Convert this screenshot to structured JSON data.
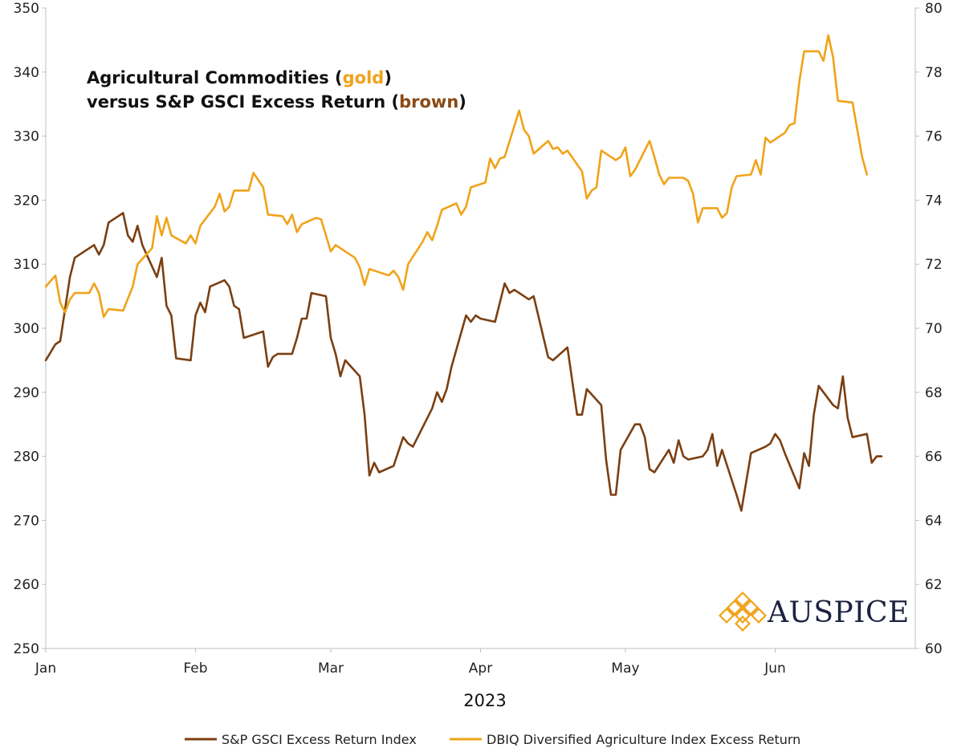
{
  "chart_data": {
    "type": "line",
    "title_line1": [
      "Agricultural Commodities (",
      "gold",
      ")"
    ],
    "title_line2": [
      "versus S&P GSCI Excess Return (",
      "brown",
      ")"
    ],
    "xlabel": "2023",
    "x_ticks": [
      "Jan",
      "Feb",
      "Mar",
      "Apr",
      "May",
      "Jun"
    ],
    "x_range_days": [
      0,
      180
    ],
    "y_left": {
      "lim": [
        250,
        350
      ],
      "ticks": [
        "250",
        "260",
        "270",
        "280",
        "290",
        "300",
        "310",
        "320",
        "330",
        "340",
        "350"
      ]
    },
    "y_right": {
      "lim": [
        60,
        80
      ],
      "ticks": [
        "60",
        "62",
        "64",
        "66",
        "68",
        "70",
        "72",
        "74",
        "76",
        "78",
        "80"
      ]
    },
    "grid": false,
    "legend_position": "bottom",
    "series": [
      {
        "name": "S&P GSCI Excess Return Index",
        "axis": "left",
        "color": "#7b3f12",
        "points": [
          [
            0,
            295
          ],
          [
            2,
            297.5
          ],
          [
            3,
            298
          ],
          [
            5,
            308
          ],
          [
            6,
            311
          ],
          [
            10,
            313
          ],
          [
            11,
            311.5
          ],
          [
            12,
            313
          ],
          [
            13,
            316.5
          ],
          [
            16,
            318
          ],
          [
            17,
            314.5
          ],
          [
            18,
            313.5
          ],
          [
            19,
            316
          ],
          [
            20,
            313
          ],
          [
            23,
            308
          ],
          [
            24,
            311
          ],
          [
            25,
            303.5
          ],
          [
            26,
            302
          ],
          [
            27,
            295.3
          ],
          [
            30,
            295
          ],
          [
            31,
            302
          ],
          [
            32,
            304
          ],
          [
            33,
            302.5
          ],
          [
            34,
            306.5
          ],
          [
            37,
            307.5
          ],
          [
            38,
            306.5
          ],
          [
            39,
            303.5
          ],
          [
            40,
            303
          ],
          [
            41,
            298.5
          ],
          [
            45,
            299.5
          ],
          [
            46,
            294
          ],
          [
            47,
            295.5
          ],
          [
            48,
            296
          ],
          [
            51,
            296
          ],
          [
            52,
            298.5
          ],
          [
            53,
            301.5
          ],
          [
            54,
            301.5
          ],
          [
            55,
            305.5
          ],
          [
            58,
            305
          ],
          [
            59,
            298.5
          ],
          [
            60,
            296
          ],
          [
            61,
            292.5
          ],
          [
            62,
            295
          ],
          [
            65,
            292.5
          ],
          [
            66,
            286.5
          ],
          [
            67,
            277
          ],
          [
            68,
            279
          ],
          [
            69,
            277.5
          ],
          [
            72,
            278.5
          ],
          [
            74,
            283
          ],
          [
            75,
            282
          ],
          [
            76,
            281.5
          ],
          [
            80,
            287.5
          ],
          [
            81,
            290
          ],
          [
            82,
            288.5
          ],
          [
            83,
            290.5
          ],
          [
            84,
            294
          ],
          [
            87,
            302
          ],
          [
            88,
            301
          ],
          [
            89,
            302
          ],
          [
            90,
            301.5
          ],
          [
            93,
            301
          ],
          [
            95,
            307
          ],
          [
            96,
            305.5
          ],
          [
            97,
            306
          ],
          [
            99,
            305
          ],
          [
            100,
            304.5
          ],
          [
            101,
            305
          ],
          [
            104,
            295.5
          ],
          [
            105,
            295
          ],
          [
            108,
            297
          ],
          [
            110,
            286.5
          ],
          [
            111,
            286.5
          ],
          [
            112,
            290.5
          ],
          [
            115,
            288
          ],
          [
            116,
            279.5
          ],
          [
            117,
            274
          ],
          [
            118,
            274
          ],
          [
            119,
            281
          ],
          [
            122,
            285
          ],
          [
            123,
            285
          ],
          [
            124,
            283
          ],
          [
            125,
            278
          ],
          [
            126,
            277.5
          ],
          [
            129,
            281
          ],
          [
            130,
            279
          ],
          [
            131,
            282.5
          ],
          [
            132,
            280
          ],
          [
            133,
            279.5
          ],
          [
            136,
            280
          ],
          [
            137,
            281
          ],
          [
            138,
            283.5
          ],
          [
            139,
            278.5
          ],
          [
            140,
            281
          ],
          [
            143,
            274
          ],
          [
            144,
            271.5
          ],
          [
            146,
            280.5
          ],
          [
            149,
            281.5
          ],
          [
            150,
            282
          ],
          [
            151,
            283.5
          ],
          [
            152,
            282.5
          ],
          [
            153,
            280.5
          ],
          [
            156,
            275
          ],
          [
            157,
            280.5
          ],
          [
            158,
            278.5
          ],
          [
            159,
            286.5
          ],
          [
            160,
            291
          ],
          [
            163,
            288
          ],
          [
            164,
            287.5
          ],
          [
            165,
            292.5
          ],
          [
            166,
            286
          ],
          [
            167,
            283
          ],
          [
            170,
            283.5
          ],
          [
            171,
            279
          ],
          [
            172,
            280
          ],
          [
            173,
            280
          ]
        ]
      },
      {
        "name": "DBIQ Diversified Agriculture Index Excess Return",
        "axis": "right",
        "color": "#f0a31a",
        "points": [
          [
            0,
            71.3
          ],
          [
            2,
            71.65
          ],
          [
            3,
            70.8
          ],
          [
            4,
            70.5
          ],
          [
            5,
            70.9
          ],
          [
            6,
            71.1
          ],
          [
            9,
            71.1
          ],
          [
            10,
            71.4
          ],
          [
            11,
            71.1
          ],
          [
            12,
            70.35
          ],
          [
            13,
            70.6
          ],
          [
            16,
            70.55
          ],
          [
            18,
            71.3
          ],
          [
            19,
            72
          ],
          [
            22,
            72.5
          ],
          [
            23,
            73.5
          ],
          [
            24,
            72.9
          ],
          [
            25,
            73.45
          ],
          [
            26,
            72.9
          ],
          [
            29,
            72.65
          ],
          [
            30,
            72.9
          ],
          [
            31,
            72.65
          ],
          [
            32,
            73.2
          ],
          [
            35,
            73.8
          ],
          [
            36,
            74.2
          ],
          [
            37,
            73.65
          ],
          [
            38,
            73.8
          ],
          [
            39,
            74.3
          ],
          [
            42,
            74.3
          ],
          [
            43,
            74.85
          ],
          [
            45,
            74.4
          ],
          [
            46,
            73.55
          ],
          [
            49,
            73.5
          ],
          [
            50,
            73.25
          ],
          [
            51,
            73.55
          ],
          [
            52,
            73.0
          ],
          [
            53,
            73.25
          ],
          [
            56,
            73.45
          ],
          [
            57,
            73.4
          ],
          [
            59,
            72.4
          ],
          [
            60,
            72.6
          ],
          [
            64,
            72.2
          ],
          [
            65,
            71.9
          ],
          [
            66,
            71.35
          ],
          [
            67,
            71.85
          ],
          [
            70,
            71.7
          ],
          [
            71,
            71.65
          ],
          [
            72,
            71.8
          ],
          [
            73,
            71.6
          ],
          [
            74,
            71.2
          ],
          [
            75,
            72.0
          ],
          [
            78,
            72.7
          ],
          [
            79,
            73.0
          ],
          [
            80,
            72.75
          ],
          [
            81,
            73.2
          ],
          [
            82,
            73.7
          ],
          [
            85,
            73.9
          ],
          [
            86,
            73.55
          ],
          [
            87,
            73.8
          ],
          [
            88,
            74.4
          ],
          [
            91,
            74.55
          ],
          [
            92,
            75.3
          ],
          [
            93,
            75.0
          ],
          [
            94,
            75.3
          ],
          [
            95,
            75.35
          ],
          [
            98,
            76.8
          ],
          [
            99,
            76.2
          ],
          [
            100,
            76.0
          ],
          [
            101,
            75.45
          ],
          [
            104,
            75.85
          ],
          [
            105,
            75.6
          ],
          [
            106,
            75.65
          ],
          [
            107,
            75.45
          ],
          [
            108,
            75.55
          ],
          [
            111,
            74.9
          ],
          [
            112,
            74.05
          ],
          [
            113,
            74.3
          ],
          [
            114,
            74.4
          ],
          [
            115,
            75.55
          ],
          [
            118,
            75.25
          ],
          [
            119,
            75.35
          ],
          [
            120,
            75.65
          ],
          [
            121,
            74.75
          ],
          [
            122,
            74.95
          ],
          [
            125,
            75.85
          ],
          [
            126,
            75.35
          ],
          [
            127,
            74.8
          ],
          [
            128,
            74.5
          ],
          [
            129,
            74.7
          ],
          [
            132,
            74.7
          ],
          [
            133,
            74.6
          ],
          [
            134,
            74.2
          ],
          [
            135,
            73.3
          ],
          [
            136,
            73.75
          ],
          [
            139,
            73.75
          ],
          [
            140,
            73.45
          ],
          [
            141,
            73.6
          ],
          [
            142,
            74.4
          ],
          [
            143,
            74.75
          ],
          [
            146,
            74.8
          ],
          [
            147,
            75.25
          ],
          [
            148,
            74.8
          ],
          [
            149,
            75.95
          ],
          [
            150,
            75.8
          ],
          [
            153,
            76.1
          ],
          [
            154,
            76.35
          ],
          [
            155,
            76.4
          ],
          [
            156,
            77.7
          ],
          [
            157,
            78.65
          ],
          [
            160,
            78.65
          ],
          [
            161,
            78.35
          ],
          [
            162,
            79.15
          ],
          [
            163,
            78.45
          ],
          [
            164,
            77.1
          ],
          [
            167,
            77.05
          ],
          [
            168,
            76.2
          ],
          [
            169,
            75.35
          ],
          [
            170,
            74.8
          ]
        ]
      }
    ]
  },
  "logo": {
    "text": "AUSPICE"
  }
}
